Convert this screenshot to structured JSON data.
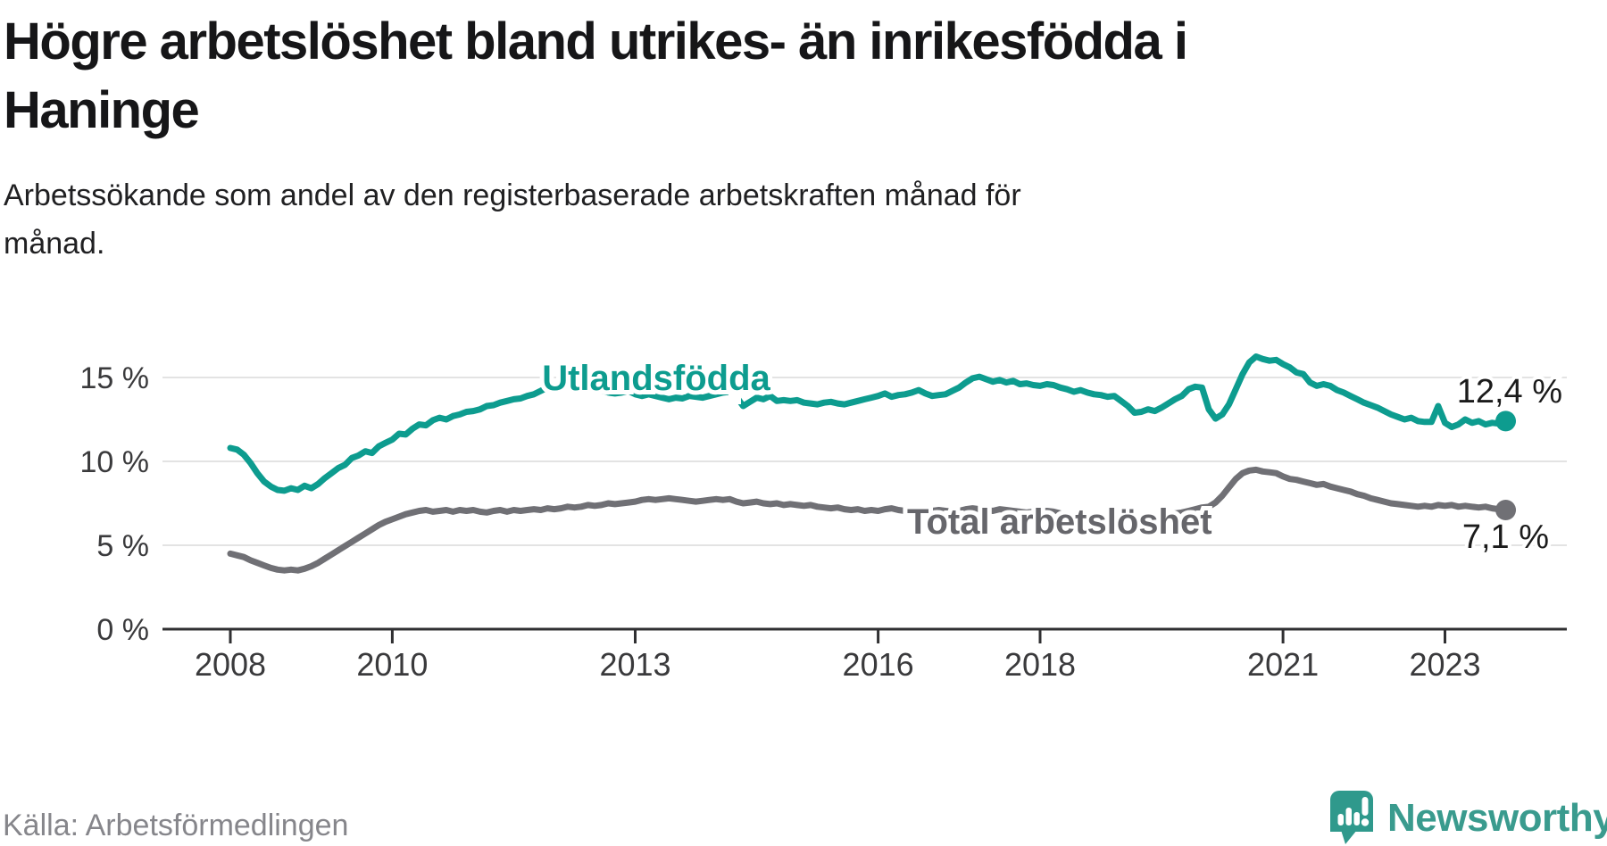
{
  "header": {
    "title_lines": [
      "Högre arbetslöshet bland utrikes- än inrikesfödda i",
      "Haninge"
    ],
    "subtitle_lines": [
      "Arbetssökande som andel av den registerbaserade arbetskraften månad för",
      "månad."
    ]
  },
  "chart_data": {
    "type": "line",
    "unit": "%",
    "frequency": "monthly",
    "x_start": "2008-01",
    "x_end": "2023-10",
    "ylim": [
      0,
      17
    ],
    "grid": "horizontal",
    "legend_position": "inline-labels",
    "y_ticks": [
      {
        "label": "15 %",
        "value": 15
      },
      {
        "label": "10 %",
        "value": 10
      },
      {
        "label": "5 %",
        "value": 5
      },
      {
        "label": "0 %",
        "value": 0
      }
    ],
    "x_ticks": [
      {
        "label": "2008",
        "year": 2008
      },
      {
        "label": "2010",
        "year": 2010
      },
      {
        "label": "2013",
        "year": 2013
      },
      {
        "label": "2016",
        "year": 2016
      },
      {
        "label": "2018",
        "year": 2018
      },
      {
        "label": "2021",
        "year": 2021
      },
      {
        "label": "2023",
        "year": 2023
      }
    ],
    "series": [
      {
        "name": "Total arbetslöshet",
        "color": "#707075",
        "label_color": "#66666b",
        "end_label": "7,1 %",
        "values": [
          4.5,
          4.4,
          4.3,
          4.1,
          3.95,
          3.8,
          3.65,
          3.55,
          3.5,
          3.55,
          3.5,
          3.6,
          3.75,
          3.95,
          4.2,
          4.45,
          4.7,
          4.95,
          5.2,
          5.45,
          5.7,
          5.95,
          6.2,
          6.4,
          6.55,
          6.7,
          6.85,
          6.95,
          7.05,
          7.1,
          7.0,
          7.05,
          7.1,
          7.0,
          7.1,
          7.05,
          7.1,
          7.0,
          6.95,
          7.05,
          7.1,
          7.0,
          7.1,
          7.05,
          7.1,
          7.15,
          7.1,
          7.2,
          7.15,
          7.2,
          7.3,
          7.25,
          7.3,
          7.4,
          7.35,
          7.4,
          7.5,
          7.45,
          7.5,
          7.55,
          7.6,
          7.7,
          7.75,
          7.7,
          7.75,
          7.8,
          7.75,
          7.7,
          7.65,
          7.6,
          7.65,
          7.7,
          7.75,
          7.7,
          7.75,
          7.6,
          7.5,
          7.55,
          7.6,
          7.5,
          7.45,
          7.5,
          7.4,
          7.45,
          7.4,
          7.35,
          7.4,
          7.3,
          7.25,
          7.2,
          7.25,
          7.15,
          7.1,
          7.15,
          7.05,
          7.1,
          7.05,
          7.15,
          7.2,
          7.1,
          7.05,
          7.1,
          7.2,
          7.15,
          7.05,
          7.1,
          7.05,
          7.0,
          7.05,
          7.15,
          7.2,
          7.15,
          7.1,
          7.05,
          7.15,
          7.1,
          7.05,
          7.0,
          6.95,
          7.0,
          7.0,
          7.05,
          7.0,
          6.9,
          6.85,
          6.8,
          6.85,
          6.8,
          6.75,
          6.7,
          6.65,
          6.7,
          6.65,
          6.6,
          6.55,
          6.6,
          6.65,
          6.7,
          6.75,
          6.8,
          6.9,
          6.95,
          7.05,
          7.15,
          7.25,
          7.3,
          7.55,
          7.95,
          8.45,
          8.95,
          9.3,
          9.45,
          9.5,
          9.4,
          9.35,
          9.3,
          9.1,
          8.95,
          8.9,
          8.8,
          8.7,
          8.6,
          8.65,
          8.5,
          8.4,
          8.3,
          8.2,
          8.05,
          7.95,
          7.8,
          7.7,
          7.6,
          7.5,
          7.45,
          7.4,
          7.35,
          7.3,
          7.35,
          7.3,
          7.4,
          7.35,
          7.4,
          7.3,
          7.35,
          7.3,
          7.25,
          7.3,
          7.2,
          7.15,
          7.1
        ]
      },
      {
        "name": "Utlandsfödda",
        "color": "#0d9c8f",
        "label_color": "#0d9c8f",
        "end_label": "12,4 %",
        "gap_after_index": 74,
        "values": [
          10.8,
          10.7,
          10.4,
          9.9,
          9.3,
          8.8,
          8.5,
          8.3,
          8.25,
          8.4,
          8.3,
          8.55,
          8.4,
          8.65,
          9.0,
          9.3,
          9.6,
          9.8,
          10.2,
          10.35,
          10.6,
          10.5,
          10.9,
          11.1,
          11.3,
          11.65,
          11.6,
          11.95,
          12.2,
          12.15,
          12.45,
          12.6,
          12.5,
          12.7,
          12.8,
          12.95,
          13.0,
          13.1,
          13.3,
          13.35,
          13.5,
          13.6,
          13.7,
          13.75,
          13.9,
          14.0,
          14.2,
          14.4,
          14.2,
          14.35,
          14.5,
          14.4,
          14.3,
          14.2,
          14.3,
          14.25,
          14.1,
          14.05,
          14.1,
          14.2,
          14.0,
          13.9,
          14.0,
          13.9,
          13.8,
          13.7,
          13.8,
          13.75,
          13.9,
          13.85,
          13.8,
          13.9,
          14.0,
          14.1,
          14.15,
          13.85,
          13.3,
          13.55,
          13.8,
          13.7,
          13.9,
          13.6,
          13.65,
          13.6,
          13.65,
          13.5,
          13.45,
          13.4,
          13.5,
          13.55,
          13.45,
          13.4,
          13.5,
          13.6,
          13.7,
          13.8,
          13.9,
          14.05,
          13.85,
          13.95,
          14.0,
          14.1,
          14.25,
          14.05,
          13.9,
          13.95,
          14.0,
          14.2,
          14.4,
          14.7,
          14.95,
          15.05,
          14.9,
          14.75,
          14.85,
          14.7,
          14.8,
          14.6,
          14.65,
          14.55,
          14.5,
          14.6,
          14.55,
          14.4,
          14.3,
          14.15,
          14.25,
          14.1,
          14.0,
          13.95,
          13.85,
          13.9,
          13.6,
          13.3,
          12.9,
          12.95,
          13.1,
          13.0,
          13.2,
          13.45,
          13.7,
          13.9,
          14.3,
          14.45,
          14.4,
          13.1,
          12.55,
          12.8,
          13.4,
          14.3,
          15.2,
          15.9,
          16.25,
          16.1,
          16.0,
          16.05,
          15.8,
          15.6,
          15.3,
          15.2,
          14.7,
          14.5,
          14.6,
          14.5,
          14.25,
          14.1,
          13.9,
          13.7,
          13.5,
          13.35,
          13.2,
          13.0,
          12.8,
          12.65,
          12.5,
          12.6,
          12.4,
          12.35,
          12.35,
          13.3,
          12.3,
          12.05,
          12.2,
          12.5,
          12.3,
          12.4,
          12.2,
          12.3,
          12.25,
          12.4
        ]
      }
    ]
  },
  "source": {
    "text": "Källa: Arbetsförmedlingen"
  },
  "branding": {
    "name": "Newsworthy",
    "icon": "newsworthy-logo",
    "color": "#3a9b8e",
    "icon_color": "#2f998c"
  }
}
